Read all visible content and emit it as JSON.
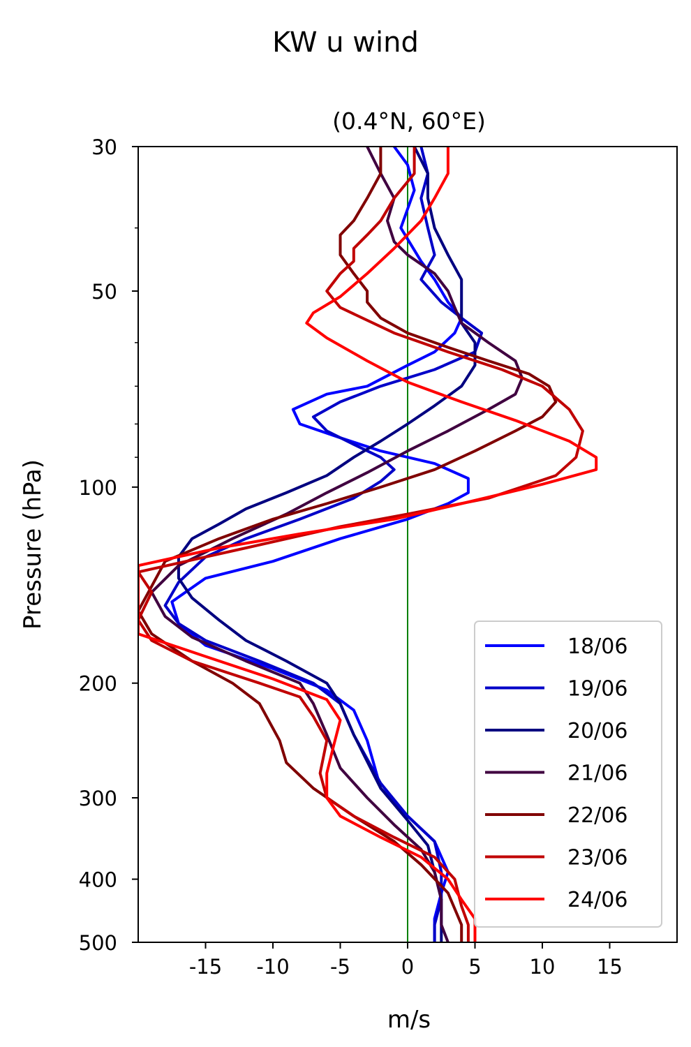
{
  "chart_data": {
    "type": "line",
    "title": "KW u wind",
    "subtitle": "(0.4°N, 60°E)",
    "xlabel": "m/s",
    "ylabel": "Pressure (hPa)",
    "xlim": [
      -20,
      20
    ],
    "ylim": [
      500,
      30
    ],
    "y_scale": "log",
    "x_ticks": [
      -15,
      -10,
      -5,
      0,
      5,
      10,
      15
    ],
    "x_tick_labels": [
      "-15",
      "-10",
      "-5",
      "0",
      "5",
      "10",
      "15"
    ],
    "y_ticks": [
      30,
      50,
      100,
      200,
      300,
      400,
      500
    ],
    "y_tick_labels": [
      "30",
      "50",
      "100",
      "200",
      "300",
      "400",
      "500"
    ],
    "y_minor_ticks": [
      40,
      60,
      70,
      80,
      90
    ],
    "zero_line_color": "#008000",
    "legend_position": "lower right",
    "grid": false,
    "series": [
      {
        "name": "18/06",
        "color": "#0000ff",
        "points": [
          [
            -1,
            30
          ],
          [
            0,
            32
          ],
          [
            0.5,
            35
          ],
          [
            -0.5,
            40
          ],
          [
            1,
            45
          ],
          [
            2,
            48
          ],
          [
            3,
            52
          ],
          [
            4,
            55
          ],
          [
            3.5,
            58
          ],
          [
            2,
            62
          ],
          [
            0,
            65
          ],
          [
            -3,
            70
          ],
          [
            -6,
            72
          ],
          [
            -8.5,
            76
          ],
          [
            -8,
            80
          ],
          [
            -5,
            84
          ],
          [
            -2,
            88
          ],
          [
            2,
            92
          ],
          [
            4.5,
            97
          ],
          [
            4.5,
            102
          ],
          [
            3,
            106
          ],
          [
            0,
            112
          ],
          [
            -5,
            120
          ],
          [
            -10,
            130
          ],
          [
            -15,
            138
          ],
          [
            -17.5,
            150
          ],
          [
            -17,
            162
          ],
          [
            -15,
            175
          ],
          [
            -10,
            190
          ],
          [
            -6,
            205
          ],
          [
            -4,
            220
          ],
          [
            -3,
            245
          ],
          [
            -2,
            290
          ],
          [
            0,
            320
          ],
          [
            2,
            350
          ],
          [
            3,
            390
          ],
          [
            2.5,
            420
          ],
          [
            2,
            460
          ],
          [
            2,
            500
          ]
        ]
      },
      {
        "name": "19/06",
        "color": "#0000c8",
        "points": [
          [
            1,
            30
          ],
          [
            1.5,
            33
          ],
          [
            1,
            36
          ],
          [
            1.5,
            40
          ],
          [
            2,
            44
          ],
          [
            1,
            48
          ],
          [
            2.5,
            52
          ],
          [
            4,
            55
          ],
          [
            5.5,
            58
          ],
          [
            5,
            62
          ],
          [
            2,
            66
          ],
          [
            -2,
            70
          ],
          [
            -5,
            74
          ],
          [
            -7,
            78
          ],
          [
            -6,
            82
          ],
          [
            -4,
            86
          ],
          [
            -2,
            90
          ],
          [
            -1,
            94
          ],
          [
            -2,
            98
          ],
          [
            -4,
            104
          ],
          [
            -8,
            112
          ],
          [
            -12,
            120
          ],
          [
            -15,
            128
          ],
          [
            -17,
            140
          ],
          [
            -18,
            152
          ],
          [
            -17,
            162
          ],
          [
            -15,
            172
          ],
          [
            -11,
            185
          ],
          [
            -7,
            200
          ],
          [
            -5,
            215
          ],
          [
            -4,
            240
          ],
          [
            -2,
            285
          ],
          [
            0,
            320
          ],
          [
            2,
            350
          ],
          [
            2.5,
            390
          ],
          [
            2.5,
            430
          ],
          [
            2,
            470
          ],
          [
            2,
            500
          ]
        ]
      },
      {
        "name": "20/06",
        "color": "#000080",
        "points": [
          [
            0.5,
            30
          ],
          [
            1.5,
            33
          ],
          [
            1.5,
            36
          ],
          [
            2,
            40
          ],
          [
            3,
            44
          ],
          [
            4,
            48
          ],
          [
            4,
            52
          ],
          [
            4,
            56
          ],
          [
            5,
            60
          ],
          [
            5,
            65
          ],
          [
            4,
            70
          ],
          [
            2,
            75
          ],
          [
            0,
            80
          ],
          [
            -2,
            85
          ],
          [
            -4,
            90
          ],
          [
            -6,
            96
          ],
          [
            -9,
            102
          ],
          [
            -12,
            108
          ],
          [
            -14,
            114
          ],
          [
            -16,
            120
          ],
          [
            -17,
            128
          ],
          [
            -17,
            138
          ],
          [
            -16,
            148
          ],
          [
            -14,
            160
          ],
          [
            -12,
            172
          ],
          [
            -9,
            185
          ],
          [
            -6,
            200
          ],
          [
            -5,
            215
          ],
          [
            -4,
            240
          ],
          [
            -2,
            290
          ],
          [
            0,
            325
          ],
          [
            1.5,
            355
          ],
          [
            2,
            390
          ],
          [
            2.5,
            430
          ],
          [
            2.5,
            470
          ],
          [
            2.5,
            500
          ]
        ]
      },
      {
        "name": "21/06",
        "color": "#400040",
        "points": [
          [
            -3,
            30
          ],
          [
            -2,
            33
          ],
          [
            -1,
            36
          ],
          [
            -1.5,
            39
          ],
          [
            -1,
            42
          ],
          [
            0,
            44
          ],
          [
            2,
            47
          ],
          [
            3,
            50
          ],
          [
            3.5,
            53
          ],
          [
            4,
            56
          ],
          [
            6,
            60
          ],
          [
            8,
            64
          ],
          [
            8.5,
            68
          ],
          [
            8,
            72
          ],
          [
            6,
            76
          ],
          [
            3,
            82
          ],
          [
            0,
            88
          ],
          [
            -3,
            95
          ],
          [
            -6,
            102
          ],
          [
            -9,
            110
          ],
          [
            -13,
            120
          ],
          [
            -17,
            132
          ],
          [
            -19,
            145
          ],
          [
            -18,
            158
          ],
          [
            -16,
            170
          ],
          [
            -12,
            185
          ],
          [
            -8,
            200
          ],
          [
            -7,
            215
          ],
          [
            -6,
            240
          ],
          [
            -5,
            270
          ],
          [
            -3,
            300
          ],
          [
            -1,
            330
          ],
          [
            1,
            360
          ],
          [
            2,
            390
          ],
          [
            2.5,
            430
          ],
          [
            2.5,
            470
          ],
          [
            3,
            500
          ]
        ]
      },
      {
        "name": "22/06",
        "color": "#800000",
        "points": [
          [
            -2,
            30
          ],
          [
            -2,
            33
          ],
          [
            -3,
            36
          ],
          [
            -4,
            39
          ],
          [
            -5,
            41
          ],
          [
            -5,
            44
          ],
          [
            -4,
            47
          ],
          [
            -3,
            50
          ],
          [
            -3,
            52
          ],
          [
            -2,
            55
          ],
          [
            0,
            58
          ],
          [
            3,
            61
          ],
          [
            6,
            64
          ],
          [
            9,
            67
          ],
          [
            10.5,
            70
          ],
          [
            11,
            74
          ],
          [
            10,
            78
          ],
          [
            8,
            82
          ],
          [
            5,
            88
          ],
          [
            2,
            94
          ],
          [
            -2,
            100
          ],
          [
            -6,
            106
          ],
          [
            -10,
            112
          ],
          [
            -14,
            120
          ],
          [
            -18,
            130
          ],
          [
            -19,
            142
          ],
          [
            -20,
            155
          ],
          [
            -19,
            168
          ],
          [
            -16,
            185
          ],
          [
            -13,
            200
          ],
          [
            -11,
            215
          ],
          [
            -9.5,
            245
          ],
          [
            -9,
            265
          ],
          [
            -7,
            290
          ],
          [
            -4,
            320
          ],
          [
            -1,
            350
          ],
          [
            1,
            380
          ],
          [
            3,
            420
          ],
          [
            4,
            470
          ],
          [
            4,
            500
          ]
        ]
      },
      {
        "name": "23/06",
        "color": "#c00000",
        "points": [
          [
            0.5,
            30
          ],
          [
            0.5,
            33
          ],
          [
            -1,
            36
          ],
          [
            -2,
            39
          ],
          [
            -3,
            41
          ],
          [
            -4,
            43
          ],
          [
            -4,
            45
          ],
          [
            -5,
            47
          ],
          [
            -6,
            50
          ],
          [
            -5,
            53
          ],
          [
            -1,
            58
          ],
          [
            3,
            62
          ],
          [
            7,
            66
          ],
          [
            10,
            70
          ],
          [
            12,
            76
          ],
          [
            13,
            82
          ],
          [
            12.5,
            90
          ],
          [
            11,
            96
          ],
          [
            6,
            104
          ],
          [
            0,
            110
          ],
          [
            -5,
            115
          ],
          [
            -12,
            124
          ],
          [
            -20,
            135
          ],
          [
            -19,
            145
          ],
          [
            -20,
            160
          ],
          [
            -19,
            172
          ],
          [
            -16,
            185
          ],
          [
            -11,
            200
          ],
          [
            -8,
            210
          ],
          [
            -7,
            225
          ],
          [
            -6,
            245
          ],
          [
            -6.5,
            275
          ],
          [
            -6,
            300
          ],
          [
            -4,
            320
          ],
          [
            -1,
            345
          ],
          [
            2,
            370
          ],
          [
            3.5,
            400
          ],
          [
            4,
            440
          ],
          [
            4.5,
            470
          ],
          [
            4.5,
            500
          ]
        ]
      },
      {
        "name": "24/06",
        "color": "#ff0000",
        "points": [
          [
            3,
            30
          ],
          [
            3,
            33
          ],
          [
            2,
            36
          ],
          [
            1,
            39
          ],
          [
            -1,
            43
          ],
          [
            -3,
            47
          ],
          [
            -5,
            51
          ],
          [
            -7,
            54
          ],
          [
            -7.5,
            56
          ],
          [
            -6,
            59
          ],
          [
            -3,
            64
          ],
          [
            0,
            69
          ],
          [
            4,
            74
          ],
          [
            8,
            79
          ],
          [
            12,
            85
          ],
          [
            14,
            90
          ],
          [
            14,
            94
          ],
          [
            10,
            99
          ],
          [
            4,
            106
          ],
          [
            -1,
            112
          ],
          [
            -8,
            118
          ],
          [
            -14,
            124
          ],
          [
            -20,
            132
          ],
          [
            -20,
            160
          ],
          [
            -20,
            168
          ],
          [
            -15,
            182
          ],
          [
            -10,
            197
          ],
          [
            -6,
            212
          ],
          [
            -5,
            228
          ],
          [
            -5.5,
            250
          ],
          [
            -6,
            275
          ],
          [
            -6,
            300
          ],
          [
            -5,
            320
          ],
          [
            -2,
            345
          ],
          [
            1,
            370
          ],
          [
            3,
            400
          ],
          [
            4,
            430
          ],
          [
            5,
            460
          ],
          [
            5,
            500
          ]
        ]
      }
    ]
  }
}
